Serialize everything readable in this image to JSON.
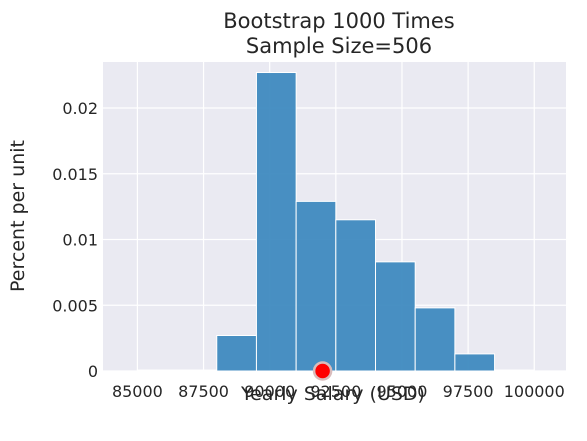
{
  "chart_data": {
    "type": "bar",
    "title_line1": "Bootstrap 1000 Times",
    "title_line2": "Sample Size=506",
    "xlabel": "Yearly Salary (USD)",
    "ylabel": "Percent per unit",
    "xlim": [
      83700,
      101200
    ],
    "ylim": [
      0,
      0.0235
    ],
    "x_ticks": [
      85000,
      87500,
      90000,
      92500,
      95000,
      97500,
      100000
    ],
    "x_tick_labels": [
      "85000",
      "87500",
      "90000",
      "92500",
      "95000",
      "97500",
      "100000"
    ],
    "y_ticks": [
      0,
      0.005,
      0.01,
      0.015,
      0.02
    ],
    "y_tick_labels": [
      "0",
      "0.005",
      "0.01",
      "0.015",
      "0.02"
    ],
    "bins": [
      {
        "x0": 85000,
        "x1": 86500,
        "value": 0
      },
      {
        "x0": 86500,
        "x1": 88000,
        "value": 0
      },
      {
        "x0": 88000,
        "x1": 89500,
        "value": 0.0027
      },
      {
        "x0": 89500,
        "x1": 91000,
        "value": 0.0227
      },
      {
        "x0": 91000,
        "x1": 92500,
        "value": 0.0129
      },
      {
        "x0": 92500,
        "x1": 94000,
        "value": 0.0115
      },
      {
        "x0": 94000,
        "x1": 95500,
        "value": 0.0083
      },
      {
        "x0": 95500,
        "x1": 97000,
        "value": 0.0048
      },
      {
        "x0": 97000,
        "x1": 98500,
        "value": 0.0013
      },
      {
        "x0": 98500,
        "x1": 100000,
        "value": 0
      }
    ],
    "marker": {
      "x": 92000,
      "y": 0
    },
    "grid": true,
    "colors": {
      "background": "#eaeaf2",
      "grid": "#ffffff",
      "bar": "#3a87be",
      "bar_edge": "#ffffff",
      "marker": "#ff0000",
      "marker_edge": "#d9bcbc"
    }
  }
}
